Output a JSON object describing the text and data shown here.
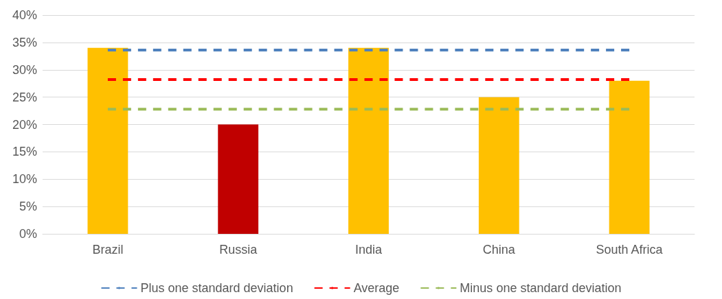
{
  "chart_data": {
    "type": "bar",
    "categories": [
      "Brazil",
      "Russia",
      "India",
      "China",
      "South Africa"
    ],
    "series": [
      {
        "colors": [
          "#ffc000",
          "#c00000",
          "#ffc000",
          "#ffc000",
          "#ffc000"
        ],
        "values": [
          34,
          20,
          34,
          25,
          28
        ]
      },
      {
        "type": "line",
        "name": "Plus one standard deviation",
        "color": "#4f81bd",
        "values": [
          33.6,
          33.6,
          33.6,
          33.6,
          33.6
        ]
      },
      {
        "type": "line",
        "name": "Average",
        "color": "#ff0000",
        "values": [
          28.2,
          28.2,
          28.2,
          28.2,
          28.2
        ]
      },
      {
        "type": "line",
        "name": "Minus one standard deviation",
        "color": "#9bbb59",
        "values": [
          22.8,
          22.8,
          22.8,
          22.8,
          22.8
        ]
      }
    ],
    "ylim": [
      0,
      40
    ],
    "yticks": [
      {
        "value": 0,
        "label": "0%"
      },
      {
        "value": 5,
        "label": "5%"
      },
      {
        "value": 10,
        "label": "10%"
      },
      {
        "value": 15,
        "label": "15%"
      },
      {
        "value": 20,
        "label": "20%"
      },
      {
        "value": 25,
        "label": "25%"
      },
      {
        "value": 30,
        "label": "30%"
      },
      {
        "value": 35,
        "label": "35%"
      },
      {
        "value": 40,
        "label": "40%"
      }
    ],
    "grid": "y",
    "legend": "bottom",
    "marker": "none",
    "line_style": "dashed"
  }
}
